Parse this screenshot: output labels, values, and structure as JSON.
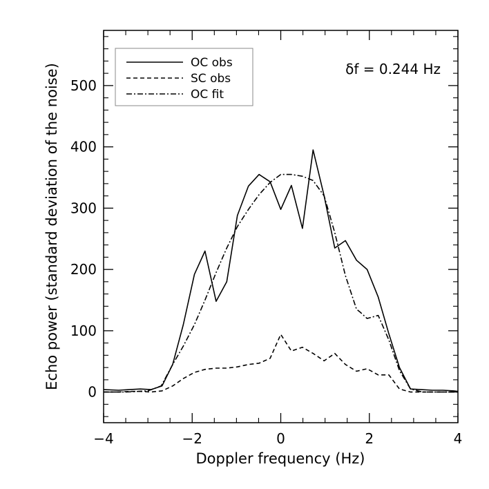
{
  "chart_data": {
    "type": "line",
    "title": "",
    "xlabel": "Doppler frequency (Hz)",
    "ylabel": "Echo power (standard deviation of the noise)",
    "xlim": [
      -4,
      4
    ],
    "ylim": [
      -50,
      590
    ],
    "xticks": [
      -4,
      -2,
      0,
      2,
      4
    ],
    "xtick_labels": [
      "−4",
      "−2",
      "0",
      "2",
      "4"
    ],
    "yticks": [
      0,
      100,
      200,
      300,
      400,
      500
    ],
    "ytick_labels": [
      "0",
      "100",
      "200",
      "300",
      "400",
      "500"
    ],
    "grid": false,
    "legend": "top-left",
    "annotation": "δf = 0.244 Hz",
    "series": [
      {
        "name": "OC obs",
        "style": "solid",
        "x": [
          -4.0,
          -3.66,
          -3.42,
          -3.17,
          -2.93,
          -2.68,
          -2.44,
          -2.2,
          -1.95,
          -1.71,
          -1.46,
          -1.22,
          -0.98,
          -0.73,
          -0.49,
          -0.24,
          0.0,
          0.24,
          0.49,
          0.73,
          0.98,
          1.22,
          1.46,
          1.71,
          1.95,
          2.2,
          2.44,
          2.68,
          2.93,
          3.17,
          3.42,
          3.66,
          3.91,
          4.0
        ],
        "y": [
          4,
          3,
          4,
          5,
          4,
          10,
          45,
          110,
          192,
          230,
          148,
          180,
          288,
          336,
          355,
          343,
          298,
          337,
          267,
          395,
          320,
          235,
          247,
          215,
          200,
          155,
          95,
          40,
          5,
          4,
          3,
          3,
          2,
          1
        ]
      },
      {
        "name": "SC obs",
        "style": "dashed",
        "x": [
          -4.0,
          -3.66,
          -3.42,
          -3.17,
          -2.93,
          -2.68,
          -2.44,
          -2.2,
          -1.95,
          -1.71,
          -1.46,
          -1.22,
          -0.98,
          -0.73,
          -0.49,
          -0.24,
          0.0,
          0.24,
          0.49,
          0.73,
          0.98,
          1.22,
          1.46,
          1.71,
          1.95,
          2.2,
          2.44,
          2.68,
          2.93,
          3.17,
          3.42,
          3.66,
          3.91,
          4.0
        ],
        "y": [
          0,
          0,
          1,
          1,
          0,
          2,
          10,
          22,
          32,
          37,
          39,
          39,
          41,
          45,
          47,
          55,
          94,
          67,
          73,
          63,
          51,
          63,
          45,
          34,
          38,
          28,
          28,
          5,
          0,
          0,
          0,
          0,
          0,
          0
        ]
      },
      {
        "name": "OC fit",
        "style": "dashdot",
        "x": [
          -4.0,
          -3.5,
          -3.0,
          -2.7,
          -2.44,
          -2.2,
          -1.95,
          -1.71,
          -1.46,
          -1.22,
          -0.98,
          -0.73,
          -0.49,
          -0.24,
          0.0,
          0.24,
          0.49,
          0.73,
          0.98,
          1.22,
          1.46,
          1.71,
          1.8,
          1.95,
          2.2,
          2.44,
          2.68,
          2.93,
          3.2,
          3.5,
          4.0
        ],
        "y": [
          0,
          0,
          2,
          10,
          45,
          75,
          110,
          150,
          195,
          235,
          270,
          298,
          322,
          342,
          355,
          355,
          352,
          345,
          320,
          260,
          190,
          135,
          130,
          120,
          125,
          85,
          35,
          5,
          0,
          0,
          0
        ]
      }
    ]
  }
}
